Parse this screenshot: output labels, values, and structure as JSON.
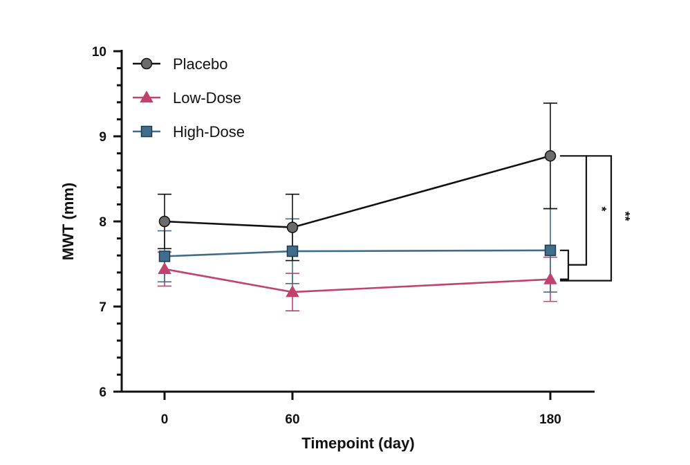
{
  "chart_data": {
    "type": "line",
    "x": [
      0,
      60,
      180
    ],
    "xlabel": "Timepoint (day)",
    "ylabel": "MWT (mm)",
    "ylim": [
      6,
      10
    ],
    "yticks": [
      6,
      7,
      8,
      9,
      10
    ],
    "xticks": [
      0,
      60,
      180
    ],
    "legend_position": "top-left",
    "series": [
      {
        "name": "Placebo",
        "marker": "circle",
        "color": "#111111",
        "marker_color": "#6b6b6b",
        "values": [
          8.0,
          7.93,
          8.77
        ],
        "error": [
          0.32,
          0.39,
          0.62
        ]
      },
      {
        "name": "Low-Dose",
        "marker": "triangle",
        "color": "#c0426d",
        "marker_color": "#c0426d",
        "values": [
          7.44,
          7.17,
          7.32
        ],
        "error": [
          0.2,
          0.22,
          0.26
        ]
      },
      {
        "name": "High-Dose",
        "marker": "square",
        "color": "#3f6d8a",
        "marker_color": "#3f6d8a",
        "values": [
          7.59,
          7.65,
          7.66
        ],
        "error": [
          0.3,
          0.38,
          0.49
        ]
      }
    ],
    "significance": [
      {
        "label": "*",
        "compares": "Placebo vs pooled doses at day 180"
      },
      {
        "label": "**",
        "compares": "Placebo vs pooled doses at day 180"
      }
    ]
  }
}
